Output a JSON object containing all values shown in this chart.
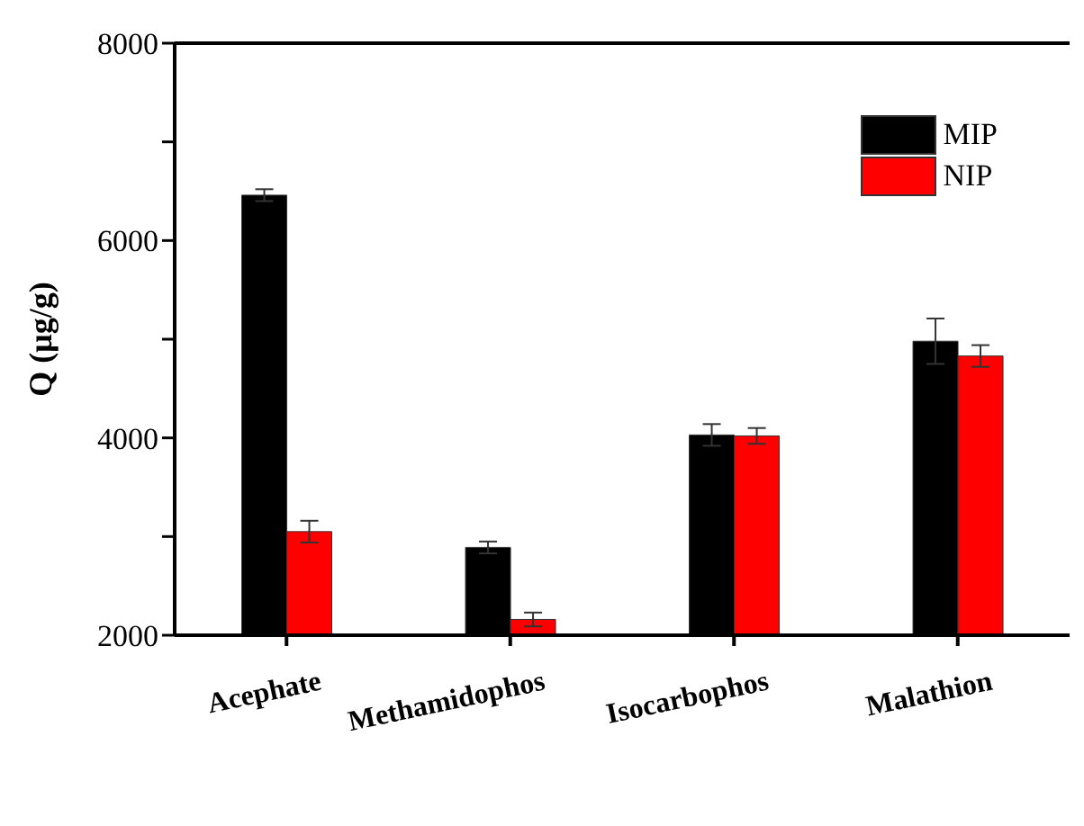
{
  "chart_data": {
    "type": "bar",
    "ylabel": "Q (μg/g)",
    "categories": [
      "Acephate",
      "Methamidophos",
      "Isocarbophos",
      "Malathion"
    ],
    "series": [
      {
        "name": "MIP",
        "color": "#000000",
        "values": [
          6460,
          2890,
          4030,
          4980
        ],
        "errors": [
          60,
          60,
          110,
          230
        ]
      },
      {
        "name": "NIP",
        "color": "#ff0000",
        "values": [
          3050,
          2160,
          4020,
          4830
        ],
        "errors": [
          110,
          70,
          80,
          110
        ]
      }
    ],
    "ylim": [
      2000,
      8000
    ],
    "yticks": [
      2000,
      {
        "value": 3000,
        "label": null
      },
      4000,
      {
        "value": 5000,
        "label": null
      },
      6000,
      {
        "value": 7000,
        "label": null
      },
      8000
    ],
    "grid": false,
    "legend": "top right"
  }
}
